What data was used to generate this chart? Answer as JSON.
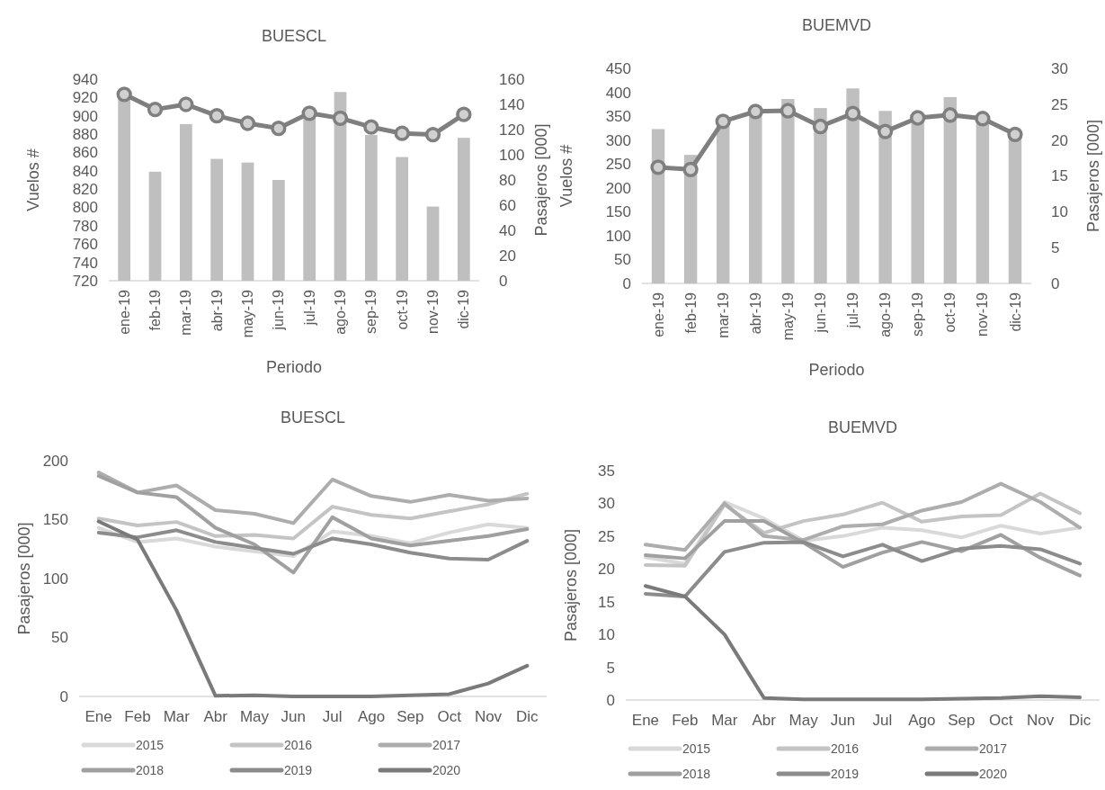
{
  "chart_data": [
    {
      "type": "bar",
      "title": "BUESCL",
      "xlabel": "Periodo",
      "ylabel": "Vuelos #",
      "y2label": "Pasajeros [000]",
      "categories": [
        "ene-19",
        "feb-19",
        "mar-19",
        "abr-19",
        "may-19",
        "jun-19",
        "jul-19",
        "ago-19",
        "sep-19",
        "oct-19",
        "nov-19",
        "dic-19"
      ],
      "ylim": [
        720,
        940
      ],
      "yticks": [
        720,
        740,
        760,
        780,
        800,
        820,
        840,
        860,
        880,
        900,
        920,
        940
      ],
      "y2lim": [
        0,
        160
      ],
      "y2ticks": [
        0,
        20,
        40,
        60,
        80,
        100,
        120,
        140,
        160
      ],
      "grid": false,
      "legend": false,
      "marker": "circle",
      "series": [
        {
          "type": "bar",
          "color": "#bfbfbf",
          "values": [
            922,
            839,
            891,
            853,
            849,
            830,
            902,
            926,
            879,
            855,
            801,
            876
          ]
        },
        {
          "type": "line",
          "axis": "y2",
          "color": "#7f7f7f",
          "values": [
            148,
            136,
            140,
            131,
            125,
            121,
            133,
            129,
            122,
            117,
            116,
            132
          ]
        }
      ]
    },
    {
      "type": "bar",
      "title": "BUEMVD",
      "xlabel": "Periodo",
      "ylabel": "Vuelos #",
      "y2label": "Pasajeros [000]",
      "categories": [
        "ene-19",
        "feb-19",
        "mar-19",
        "abr-19",
        "may-19",
        "jun-19",
        "jul-19",
        "ago-19",
        "sep-19",
        "oct-19",
        "nov-19",
        "dic-19"
      ],
      "ylim": [
        0,
        450
      ],
      "yticks": [
        0,
        50,
        100,
        150,
        200,
        250,
        300,
        350,
        400,
        450
      ],
      "y2lim": [
        0,
        30
      ],
      "y2ticks": [
        0,
        5,
        10,
        15,
        20,
        25,
        30
      ],
      "grid": false,
      "legend": false,
      "marker": "circle",
      "series": [
        {
          "type": "bar",
          "color": "#bfbfbf",
          "values": [
            323,
            269,
            335,
            355,
            386,
            367,
            408,
            361,
            345,
            390,
            340,
            310
          ]
        },
        {
          "type": "line",
          "axis": "y2",
          "color": "#7f7f7f",
          "values": [
            16.2,
            15.9,
            22.6,
            24.0,
            24.1,
            21.9,
            23.7,
            21.2,
            23.1,
            23.5,
            23.0,
            20.8
          ]
        }
      ]
    },
    {
      "type": "line",
      "title": "BUESCL",
      "ylabel": "Pasajeros [000]",
      "categories": [
        "Ene",
        "Feb",
        "Mar",
        "Abr",
        "May",
        "Jun",
        "Jul",
        "Ago",
        "Sep",
        "Oct",
        "Nov",
        "Dic"
      ],
      "ylim": [
        0,
        200
      ],
      "yticks": [
        0,
        50,
        100,
        150,
        200
      ],
      "grid": false,
      "legend": "bottom",
      "series": [
        {
          "name": "2015",
          "color": "#d9d9d9",
          "values": [
            143,
            131,
            134,
            127,
            123,
            119,
            140,
            136,
            130,
            139,
            146,
            143
          ]
        },
        {
          "name": "2016",
          "color": "#c4c4c4",
          "values": [
            151,
            145,
            148,
            136,
            137,
            134,
            161,
            154,
            151,
            157,
            163,
            172
          ]
        },
        {
          "name": "2017",
          "color": "#adadad",
          "values": [
            190,
            173,
            179,
            158,
            155,
            147,
            184,
            170,
            165,
            171,
            166,
            168
          ]
        },
        {
          "name": "2018",
          "color": "#a0a0a0",
          "values": [
            187,
            173,
            169,
            143,
            129,
            105,
            152,
            134,
            128,
            132,
            136,
            142
          ]
        },
        {
          "name": "2019",
          "color": "#8c8c8c",
          "values": [
            139,
            135,
            141,
            131,
            126,
            121,
            134,
            129,
            122,
            117,
            116,
            132
          ]
        },
        {
          "name": "2020",
          "color": "#7a7a7a",
          "values": [
            148.5,
            133,
            73,
            0.5,
            1,
            0,
            0,
            0,
            1,
            2,
            11,
            26
          ]
        }
      ]
    },
    {
      "type": "line",
      "title": "BUEMVD",
      "ylabel": "Pasajeros [000]",
      "categories": [
        "Ene",
        "Feb",
        "Mar",
        "Abr",
        "May",
        "Jun",
        "Jul",
        "Ago",
        "Sep",
        "Oct",
        "Nov",
        "Dic"
      ],
      "ylim": [
        0,
        35
      ],
      "yticks": [
        0,
        5,
        10,
        15,
        20,
        25,
        30,
        35
      ],
      "grid": false,
      "legend": "bottom",
      "series": [
        {
          "name": "2015",
          "color": "#d9d9d9",
          "values": [
            21.8,
            20.8,
            30.2,
            27.7,
            24.3,
            25.0,
            26.3,
            25.9,
            24.8,
            26.6,
            25.4,
            26.3
          ]
        },
        {
          "name": "2016",
          "color": "#c4c4c4",
          "values": [
            20.6,
            20.5,
            29.8,
            25.5,
            27.3,
            28.3,
            30.1,
            27.2,
            28.0,
            28.2,
            31.5,
            28.5
          ]
        },
        {
          "name": "2017",
          "color": "#adadad",
          "values": [
            23.7,
            22.9,
            30.0,
            25.0,
            24.4,
            26.5,
            26.8,
            28.9,
            30.2,
            33.0,
            30.2,
            26.3
          ]
        },
        {
          "name": "2018",
          "color": "#a0a0a0",
          "values": [
            22.1,
            21.6,
            27.3,
            27.3,
            24.0,
            20.3,
            22.5,
            24.1,
            22.7,
            25.2,
            21.7,
            19.0
          ]
        },
        {
          "name": "2019",
          "color": "#8c8c8c",
          "values": [
            16.2,
            15.8,
            22.6,
            24.0,
            24.1,
            21.9,
            23.7,
            21.2,
            23.1,
            23.5,
            23.0,
            20.8
          ]
        },
        {
          "name": "2020",
          "color": "#7a7a7a",
          "values": [
            17.4,
            15.8,
            10.0,
            0.3,
            0.1,
            0.1,
            0.1,
            0.1,
            0.2,
            0.3,
            0.6,
            0.4
          ]
        }
      ]
    }
  ]
}
